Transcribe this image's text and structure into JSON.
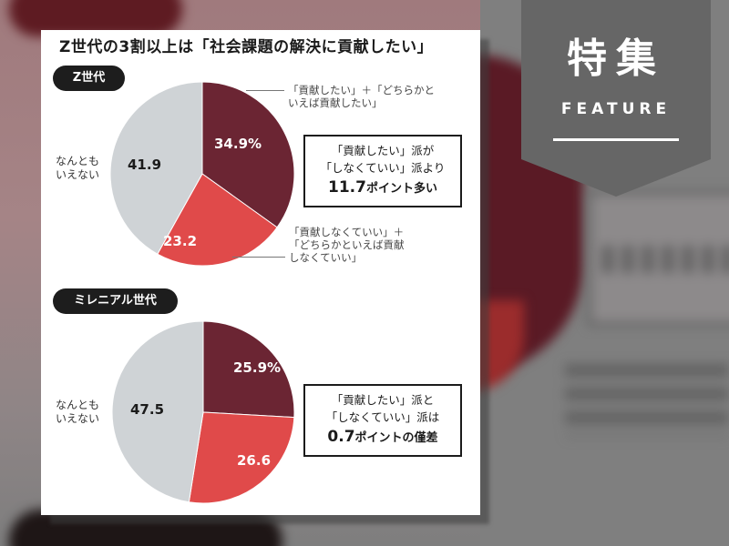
{
  "title": "Z世代の3割以上は「社会課題の解決に貢献したい」",
  "banner": {
    "kanji": "特集",
    "english": "FEATURE"
  },
  "colors": {
    "contribute": "#6b2533",
    "not_contribute": "#e04a4a",
    "neutral": "#cfd3d6",
    "banner": "#666666"
  },
  "legend_notes": {
    "contribute_line1": "「貢献したい」＋「どちらかと",
    "contribute_line2": "いえば貢献したい」",
    "not_line1": "「貢献しなくていい」＋",
    "not_line2": "「どちらかといえば貢献",
    "not_line3": "しなくていい」"
  },
  "neutral_label": {
    "line1": "なんとも",
    "line2": "いえない"
  },
  "genz": {
    "pill": "Z世代",
    "labels": {
      "contribute": "34.9%",
      "not_contribute": "23.2",
      "neutral": "41.9"
    },
    "callout": {
      "line1": "「貢献したい」派が",
      "line2": "「しなくていい」派より",
      "big_num": "11.7",
      "big_rest": "ポイント多い"
    }
  },
  "millennial": {
    "pill": "ミレニアル世代",
    "labels": {
      "contribute": "25.9%",
      "not_contribute": "26.6",
      "neutral": "47.5"
    },
    "callout": {
      "line1": "「貢献したい」派と",
      "line2": "「しなくていい」派は",
      "big_num": "0.7",
      "big_rest": "ポイントの僅差"
    }
  },
  "chart_data": [
    {
      "type": "pie",
      "title": "Z世代",
      "categories": [
        "貢献したい＋どちらかといえば貢献したい",
        "貢献しなくていい＋どちらかといえば貢献しなくていい",
        "なんともいえない"
      ],
      "values": [
        34.9,
        23.2,
        41.9
      ],
      "colors": [
        "#6b2533",
        "#e04a4a",
        "#cfd3d6"
      ],
      "unit": "%",
      "annotation": "「貢献したい」派が「しなくていい」派より11.7ポイント多い"
    },
    {
      "type": "pie",
      "title": "ミレニアル世代",
      "categories": [
        "貢献したい＋どちらかといえば貢献したい",
        "貢献しなくていい＋どちらかといえば貢献しなくていい",
        "なんともいえない"
      ],
      "values": [
        25.9,
        26.6,
        47.5
      ],
      "colors": [
        "#6b2533",
        "#e04a4a",
        "#cfd3d6"
      ],
      "unit": "%",
      "annotation": "「貢献したい」派と「しなくていい」派は0.7ポイントの僅差"
    }
  ]
}
